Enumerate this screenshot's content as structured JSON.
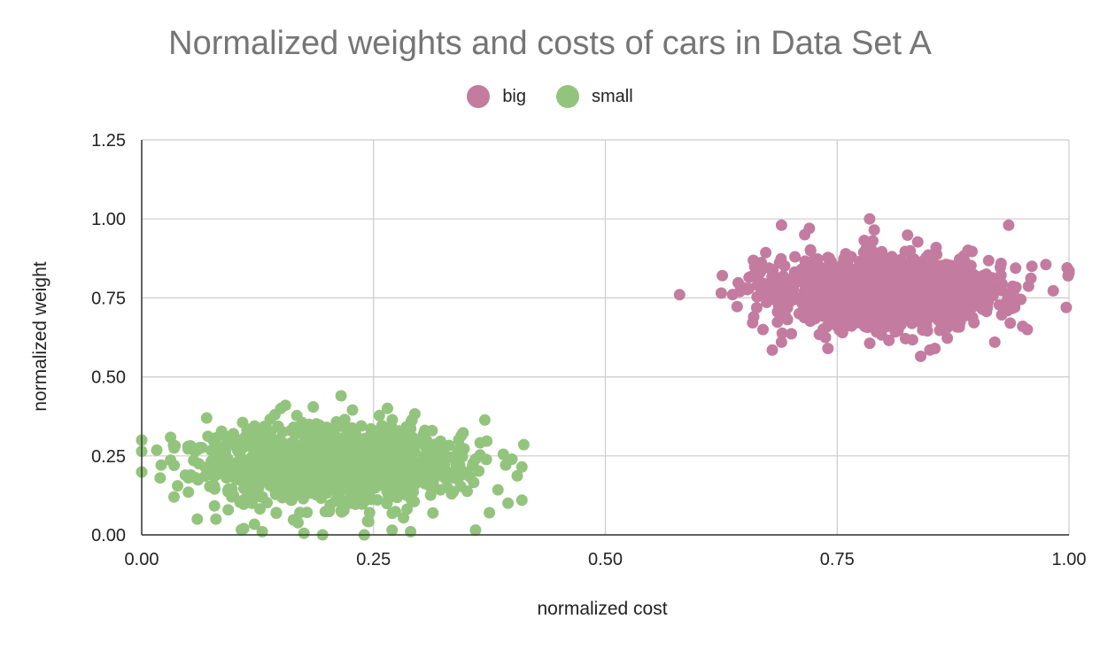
{
  "chart_data": {
    "type": "scatter",
    "title": "Normalized weights and costs of cars in Data Set A",
    "xlabel": "normalized cost",
    "ylabel": "normalized weight",
    "xlim": [
      0,
      1
    ],
    "ylim": [
      0,
      1.25
    ],
    "x_ticks": [
      "0.00",
      "0.25",
      "0.50",
      "0.75",
      "1.00"
    ],
    "y_ticks": [
      "0.00",
      "0.25",
      "0.50",
      "0.75",
      "1.00",
      "1.25"
    ],
    "grid": true,
    "legend_position": "top-center",
    "series": [
      {
        "name": "big",
        "color": "#c47ba0",
        "center": [
          0.8,
          0.77
        ],
        "spread": [
          0.06,
          0.055
        ],
        "count": 1400,
        "points": [
          [
            0.58,
            0.76
          ],
          [
            0.625,
            0.765
          ],
          [
            0.655,
            0.815
          ],
          [
            0.665,
            0.82
          ],
          [
            0.69,
            0.98
          ],
          [
            0.72,
            0.97
          ],
          [
            0.785,
            1.0
          ],
          [
            0.935,
            0.98
          ],
          [
            0.96,
            0.85
          ],
          [
            0.998,
            0.845
          ],
          [
            0.999,
            0.82
          ],
          [
            0.997,
            0.72
          ],
          [
            0.955,
            0.65
          ],
          [
            0.95,
            0.66
          ],
          [
            0.92,
            0.61
          ],
          [
            0.84,
            0.565
          ],
          [
            0.85,
            0.585
          ],
          [
            0.74,
            0.59
          ],
          [
            0.68,
            0.585
          ],
          [
            0.69,
            0.61
          ],
          [
            0.67,
            0.65
          ],
          [
            0.66,
            0.69
          ],
          [
            0.645,
            0.77
          ],
          [
            0.715,
            0.95
          ],
          [
            0.79,
            0.965
          ]
        ]
      },
      {
        "name": "small",
        "color": "#93c47d",
        "center": [
          0.2,
          0.22
        ],
        "spread": [
          0.065,
          0.06
        ],
        "count": 1400,
        "points": [
          [
            0.0,
            0.3
          ],
          [
            0.035,
            0.275
          ],
          [
            0.035,
            0.22
          ],
          [
            0.05,
            0.28
          ],
          [
            0.07,
            0.37
          ],
          [
            0.215,
            0.44
          ],
          [
            0.39,
            0.255
          ],
          [
            0.41,
            0.215
          ],
          [
            0.41,
            0.11
          ],
          [
            0.395,
            0.1
          ],
          [
            0.375,
            0.07
          ],
          [
            0.36,
            0.015
          ],
          [
            0.29,
            0.01
          ],
          [
            0.27,
            0.015
          ],
          [
            0.24,
            0.0
          ],
          [
            0.195,
            0.0
          ],
          [
            0.175,
            0.005
          ],
          [
            0.13,
            0.01
          ],
          [
            0.11,
            0.02
          ],
          [
            0.06,
            0.05
          ],
          [
            0.08,
            0.05
          ],
          [
            0.155,
            0.41
          ],
          [
            0.15,
            0.4
          ],
          [
            0.185,
            0.405
          ],
          [
            0.36,
            0.24
          ]
        ]
      }
    ]
  }
}
